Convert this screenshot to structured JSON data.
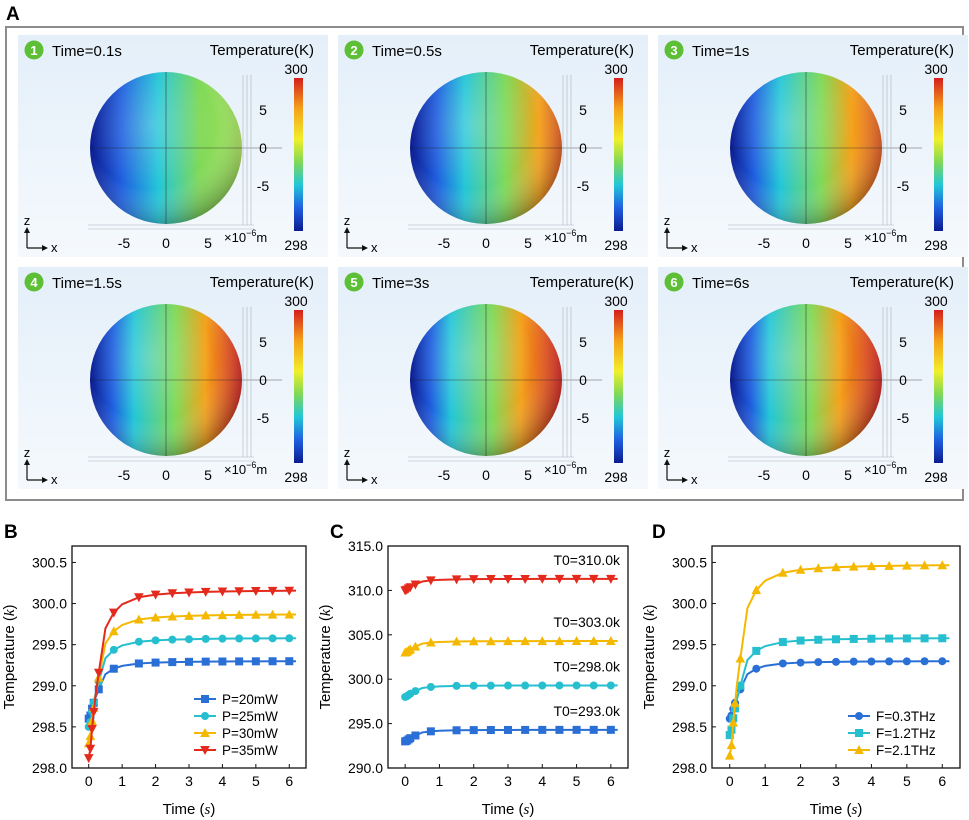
{
  "panel_labels": {
    "a": "A",
    "b": "B",
    "c": "C",
    "d": "D"
  },
  "simulation": {
    "colorbar_title": "Temperature(K)",
    "colorbar_max": "300",
    "colorbar_min": "298",
    "axis_ticks": [
      "-5",
      "0",
      "5"
    ],
    "scale_unit_prefix": "×10",
    "scale_unit_exponent": "−6",
    "scale_unit_suffix": "m",
    "axis_z": "z",
    "axis_x": "x",
    "colors": {
      "hot": "#d41e1e",
      "warm": "#f4a21a",
      "mid": "#7fd957",
      "cool": "#22c6d8",
      "cold": "#0b1a8f"
    },
    "frames": [
      {
        "index": "1",
        "time": "Time=0.1s",
        "heat": 0.15
      },
      {
        "index": "2",
        "time": "Time=0.5s",
        "heat": 0.55
      },
      {
        "index": "3",
        "time": "Time=1s",
        "heat": 0.7
      },
      {
        "index": "4",
        "time": "Time=1.5s",
        "heat": 0.85
      },
      {
        "index": "5",
        "time": "Time=3s",
        "heat": 0.95
      },
      {
        "index": "6",
        "time": "Time=6s",
        "heat": 1.0
      }
    ]
  },
  "chart_data": [
    {
      "id": "B",
      "type": "line",
      "xlabel": "Time",
      "xlabel_unit": "s",
      "ylabel": "Temperature",
      "ylabel_unit": "k",
      "xlim": [
        -0.5,
        6.5
      ],
      "ylim": [
        298.0,
        300.7
      ],
      "xticks": [
        0,
        1,
        2,
        3,
        4,
        5,
        6
      ],
      "yticks": [
        "298.0",
        "298.5",
        "299.0",
        "299.5",
        "300.0",
        "300.5"
      ],
      "ytick_values": [
        298.0,
        298.5,
        299.0,
        299.5,
        300.0,
        300.5
      ],
      "legend_position": "bottom-right",
      "series": [
        {
          "name": "P=20mW",
          "color": "#2a6fd6",
          "marker": "square",
          "t0": 298.6,
          "tinf": 299.3
        },
        {
          "name": "P=25mW",
          "color": "#25bfcf",
          "marker": "circle",
          "t0": 298.5,
          "tinf": 299.58
        },
        {
          "name": "P=30mW",
          "color": "#f5b800",
          "marker": "triangle-up",
          "t0": 298.3,
          "tinf": 299.87
        },
        {
          "name": "P=35mW",
          "color": "#e42a1d",
          "marker": "triangle-down",
          "t0": 298.12,
          "tinf": 300.16
        }
      ]
    },
    {
      "id": "C",
      "type": "line",
      "xlabel": "Time",
      "xlabel_unit": "s",
      "ylabel": "Temperature",
      "ylabel_unit": "k",
      "xlim": [
        -0.5,
        6.5
      ],
      "ylim": [
        290.0,
        315.0
      ],
      "xticks": [
        0,
        1,
        2,
        3,
        4,
        5,
        6
      ],
      "yticks": [
        "290.0",
        "295.0",
        "300.0",
        "305.0",
        "310.0",
        "315.0"
      ],
      "ytick_values": [
        290.0,
        295.0,
        300.0,
        305.0,
        310.0,
        315.0
      ],
      "series": [
        {
          "name": "T0=293.0k",
          "color": "#2a6fd6",
          "marker": "square",
          "t0": 293.0,
          "tinf": 294.3
        },
        {
          "name": "T0=298.0k",
          "color": "#25bfcf",
          "marker": "circle",
          "t0": 298.0,
          "tinf": 299.3
        },
        {
          "name": "T0=303.0k",
          "color": "#f5b800",
          "marker": "triangle-up",
          "t0": 303.0,
          "tinf": 304.3
        },
        {
          "name": "T0=310.0k",
          "color": "#e42a1d",
          "marker": "triangle-down",
          "t0": 310.0,
          "tinf": 311.3
        }
      ]
    },
    {
      "id": "D",
      "type": "line",
      "xlabel": "Time",
      "xlabel_unit": "s",
      "ylabel": "Temperature",
      "ylabel_unit": "k",
      "xlim": [
        -0.5,
        6.5
      ],
      "ylim": [
        298.0,
        300.7
      ],
      "xticks": [
        0,
        1,
        2,
        3,
        4,
        5,
        6
      ],
      "yticks": [
        "298.0",
        "298.5",
        "299.0",
        "299.5",
        "300.0",
        "300.5"
      ],
      "ytick_values": [
        298.0,
        298.5,
        299.0,
        299.5,
        300.0,
        300.5
      ],
      "legend_position": "bottom-right",
      "series": [
        {
          "name": "F=0.3THz",
          "color": "#2a6fd6",
          "marker": "circle",
          "t0": 298.6,
          "tinf": 299.3
        },
        {
          "name": "F=1.2THz",
          "color": "#25bfcf",
          "marker": "square",
          "t0": 298.4,
          "tinf": 299.58
        },
        {
          "name": "F=2.1THz",
          "color": "#f5b800",
          "marker": "triangle-up",
          "t0": 298.15,
          "tinf": 300.47
        }
      ]
    }
  ]
}
